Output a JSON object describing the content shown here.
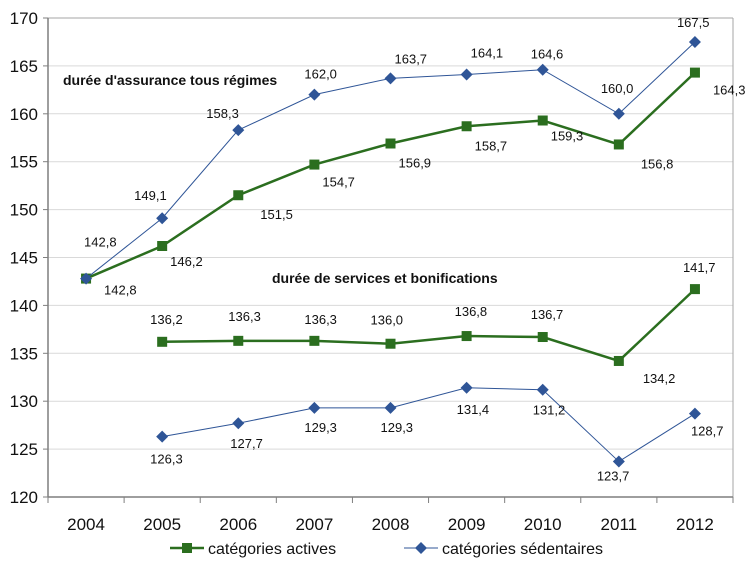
{
  "chart_data": {
    "type": "line",
    "title": "",
    "xlabel": "",
    "ylabel": "",
    "ylim": [
      120,
      170
    ],
    "yticks": [
      "120",
      "125",
      "130",
      "135",
      "140",
      "145",
      "150",
      "155",
      "160",
      "165",
      "170"
    ],
    "ytick_values": [
      120,
      125,
      130,
      135,
      140,
      145,
      150,
      155,
      160,
      165,
      170
    ],
    "grid": true,
    "categories": [
      "2004",
      "2005",
      "2006",
      "2007",
      "2008",
      "2009",
      "2010",
      "2011",
      "2012"
    ],
    "legend_position": "bottom",
    "annotations": [
      {
        "text": "durée d'assurance tous régimes",
        "anchor": "upper group"
      },
      {
        "text": "durée de services et bonifications",
        "anchor": "lower group"
      }
    ],
    "series": [
      {
        "name": "catégories actives",
        "group": "durée d'assurance tous régimes",
        "marker": "square",
        "color": "#2b6e1f",
        "values": [
          142.8,
          146.2,
          151.5,
          154.7,
          156.9,
          158.7,
          159.3,
          156.8,
          164.3
        ],
        "labels": [
          "142,8",
          "146,2",
          "151,5",
          "154,7",
          "156,9",
          "158,7",
          "159,3",
          "156,8",
          "164,3"
        ]
      },
      {
        "name": "catégories sédentaires",
        "group": "durée d'assurance tous régimes",
        "marker": "diamond",
        "color": "#2f5597",
        "values": [
          142.8,
          149.1,
          158.3,
          162.0,
          163.7,
          164.1,
          164.6,
          160.0,
          167.5
        ],
        "labels": [
          "142,8",
          "149,1",
          "158,3",
          "162,0",
          "163,7",
          "164,1",
          "164,6",
          "160,0",
          "167,5"
        ]
      },
      {
        "name": "catégories actives",
        "group": "durée de services et bonifications",
        "marker": "square",
        "color": "#2b6e1f",
        "values": [
          null,
          136.2,
          136.3,
          136.3,
          136.0,
          136.8,
          136.7,
          134.2,
          141.7
        ],
        "labels": [
          null,
          "136,2",
          "136,3",
          "136,3",
          "136,0",
          "136,8",
          "136,7",
          "134,2",
          "141,7"
        ]
      },
      {
        "name": "catégories sédentaires",
        "group": "durée de services et bonifications",
        "marker": "diamond",
        "color": "#2f5597",
        "values": [
          null,
          126.3,
          127.7,
          129.3,
          129.3,
          131.4,
          131.2,
          123.7,
          128.7
        ],
        "labels": [
          null,
          "126,3",
          "127,7",
          "129,3",
          "129,3",
          "131,4",
          "131,2",
          "123,7",
          "128,7"
        ]
      }
    ],
    "legend": [
      {
        "label": "catégories actives",
        "marker": "square",
        "color": "#2b6e1f"
      },
      {
        "label": "catégories sédentaires",
        "marker": "diamond",
        "color": "#2f5597"
      }
    ]
  }
}
